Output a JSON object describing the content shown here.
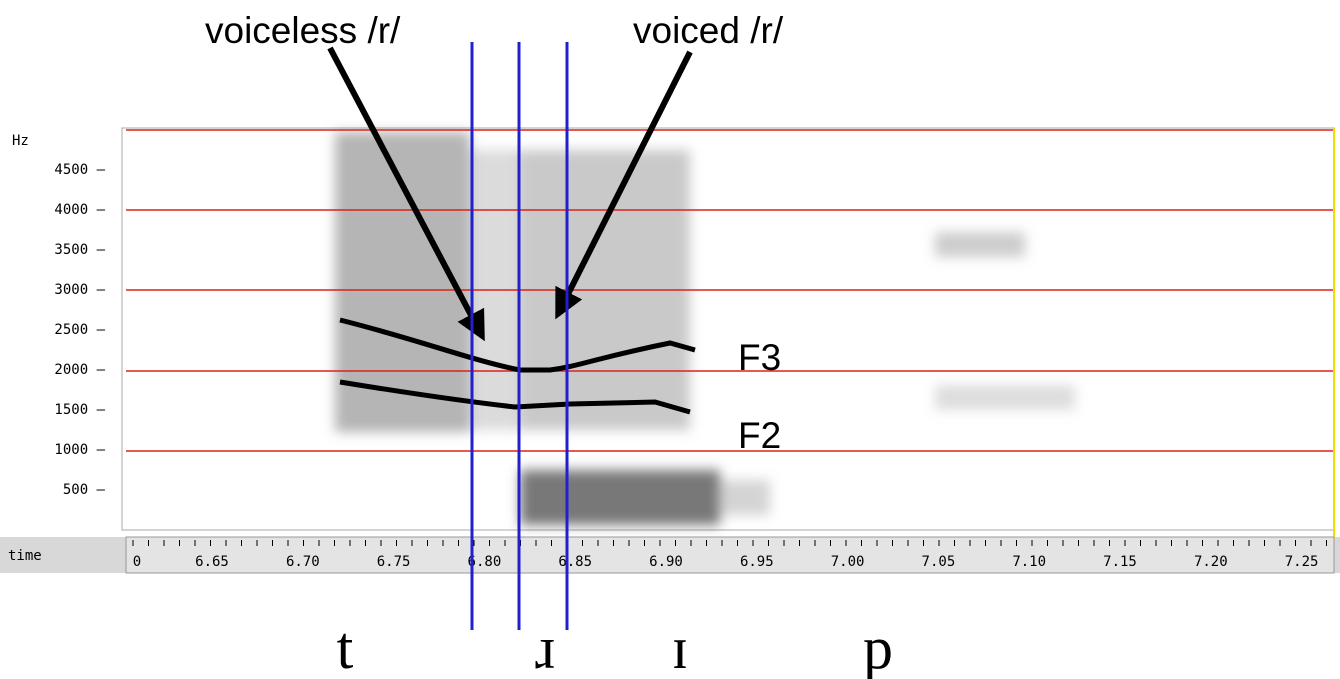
{
  "annotations": {
    "voiceless": "voiceless /r/",
    "voiced": "voiced /r/",
    "f3": "F3",
    "f2": "F2"
  },
  "frequency_axis": {
    "unit": "Hz",
    "ticks": [
      "4500 –",
      "4000 –",
      "3500 –",
      "3000 –",
      "2500 –",
      "2000 –",
      "1500 –",
      "1000 –",
      "500 –"
    ]
  },
  "time_axis": {
    "label": "time",
    "ticks": [
      "0",
      "6.65",
      "6.70",
      "6.75",
      "6.80",
      "6.85",
      "6.90",
      "6.95",
      "7.00",
      "7.05",
      "7.10",
      "7.15",
      "7.20",
      "7.25"
    ]
  },
  "segments": [
    "t",
    "ɹ",
    "ɪ",
    "p"
  ]
}
